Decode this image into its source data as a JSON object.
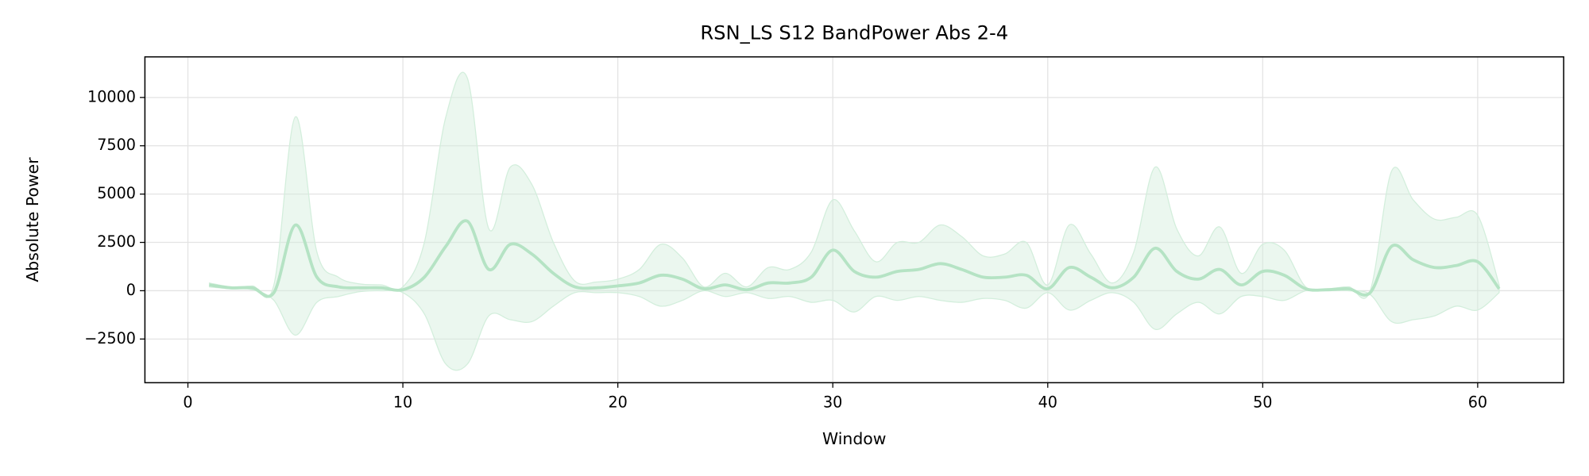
{
  "chart_data": {
    "type": "line",
    "title": "RSN_LS S12 BandPower Abs 2-4",
    "xlabel": "Window",
    "ylabel": "Absolute Power",
    "x": [
      1,
      2,
      3,
      4,
      5,
      6,
      7,
      8,
      9,
      10,
      11,
      12,
      13,
      14,
      15,
      16,
      17,
      18,
      19,
      20,
      21,
      22,
      23,
      24,
      25,
      26,
      27,
      28,
      29,
      30,
      31,
      32,
      33,
      34,
      35,
      36,
      37,
      38,
      39,
      40,
      41,
      42,
      43,
      44,
      45,
      46,
      47,
      48,
      49,
      50,
      51,
      52,
      53,
      54,
      55,
      56,
      57,
      58,
      59,
      60,
      61
    ],
    "values": [
      300,
      150,
      150,
      -100,
      3400,
      700,
      200,
      150,
      150,
      50,
      700,
      2300,
      3600,
      1100,
      2400,
      1900,
      900,
      200,
      150,
      250,
      400,
      800,
      600,
      100,
      300,
      50,
      400,
      400,
      700,
      2100,
      1000,
      700,
      1000,
      1100,
      1400,
      1100,
      700,
      700,
      800,
      100,
      1200,
      700,
      150,
      700,
      2200,
      1000,
      600,
      1100,
      300,
      1000,
      800,
      100,
      50,
      100,
      -100,
      2300,
      1600,
      1200,
      1300,
      1500,
      100
    ],
    "band": {
      "upper": [
        400,
        200,
        250,
        300,
        9000,
        2000,
        700,
        350,
        300,
        200,
        2500,
        9000,
        11000,
        3200,
        6400,
        5500,
        2500,
        500,
        450,
        600,
        1100,
        2400,
        1700,
        200,
        900,
        200,
        1200,
        1100,
        2000,
        4700,
        3100,
        1500,
        2500,
        2500,
        3400,
        2800,
        1800,
        1900,
        2500,
        300,
        3400,
        1900,
        400,
        2000,
        6400,
        3200,
        1800,
        3300,
        900,
        2400,
        2100,
        200,
        100,
        200,
        0,
        6200,
        4700,
        3700,
        3800,
        3900,
        300
      ],
      "lower": [
        200,
        100,
        50,
        -500,
        -2300,
        -600,
        -300,
        -50,
        0,
        -100,
        -1200,
        -3800,
        -3800,
        -1300,
        -1500,
        -1600,
        -800,
        -100,
        -100,
        -100,
        -300,
        -800,
        -500,
        0,
        -300,
        -100,
        -400,
        -300,
        -600,
        -500,
        -1100,
        -300,
        -500,
        -300,
        -500,
        -600,
        -400,
        -500,
        -900,
        -100,
        -1000,
        -500,
        -100,
        -600,
        -2000,
        -1200,
        -600,
        -1200,
        -300,
        -300,
        -500,
        0,
        0,
        0,
        -200,
        -1600,
        -1500,
        -1300,
        -800,
        -1000,
        -100
      ]
    },
    "color": "#b5e3c4",
    "band_color": "#d3eedc",
    "xlim": [
      -2,
      64
    ],
    "ylim": [
      -4760,
      12100
    ],
    "xticks": [
      0,
      10,
      20,
      30,
      40,
      50,
      60
    ],
    "yticks": [
      {
        "value": -2500,
        "label": "−2500"
      },
      0,
      2500,
      5000,
      7500,
      10000
    ],
    "grid": true
  }
}
